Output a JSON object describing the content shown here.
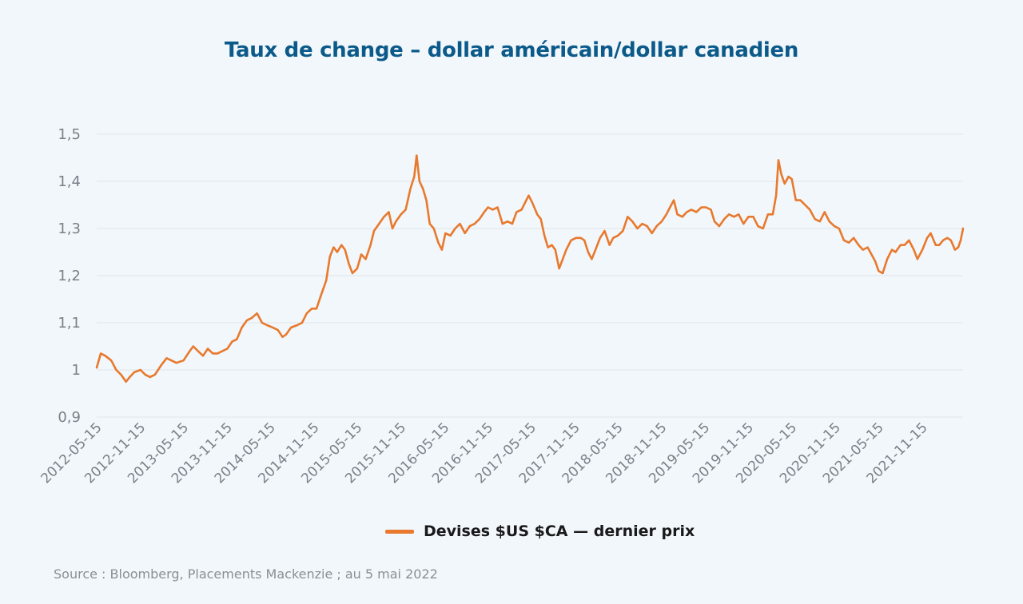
{
  "title": "Taux de change – dollar américain/dollar canadien",
  "source": "Source : Bloomberg, Placements Mackenzie ; au 5 mai 2022",
  "colors": {
    "line": "#e8792d",
    "title": "#0b5a8a",
    "grid": "#dfe5ea",
    "background": "#f1f7fb"
  },
  "chart_data": {
    "type": "line",
    "title": "Taux de change – dollar américain/dollar canadien",
    "xlabel": "",
    "ylabel": "",
    "ylim": [
      0.9,
      1.5
    ],
    "yticks": [
      0.9,
      1.0,
      1.1,
      1.2,
      1.3,
      1.4,
      1.5
    ],
    "ytick_labels": [
      "0,9",
      "1",
      "1,1",
      "1,2",
      "1,3",
      "1,4",
      "1,5"
    ],
    "xlim": [
      "2012-05-15",
      "2022-05-05"
    ],
    "xtick_labels": [
      "2012-05-15",
      "2012-11-15",
      "2013-05-15",
      "2013-11-15",
      "2014-05-15",
      "2014-11-15",
      "2015-05-15",
      "2015-11-15",
      "2016-05-15",
      "2016-11-15",
      "2017-05-15",
      "2017-11-15",
      "2018-05-15",
      "2018-11-15",
      "2019-05-15",
      "2019-11-15",
      "2020-05-15",
      "2020-11-15",
      "2021-05-15",
      "2021-11-15"
    ],
    "grid": true,
    "legend_position": "bottom",
    "series": [
      {
        "name": "Devises $US $CA — dernier prix",
        "color": "#e8792d",
        "points": [
          [
            "2012-05-15",
            1.005
          ],
          [
            "2012-06-01",
            1.035
          ],
          [
            "2012-06-20",
            1.03
          ],
          [
            "2012-07-15",
            1.02
          ],
          [
            "2012-08-05",
            1.0
          ],
          [
            "2012-08-25",
            0.99
          ],
          [
            "2012-09-15",
            0.975
          ],
          [
            "2012-10-01",
            0.985
          ],
          [
            "2012-10-20",
            0.995
          ],
          [
            "2012-11-15",
            1.0
          ],
          [
            "2012-12-05",
            0.99
          ],
          [
            "2012-12-25",
            0.985
          ],
          [
            "2013-01-15",
            0.99
          ],
          [
            "2013-02-10",
            1.01
          ],
          [
            "2013-03-05",
            1.025
          ],
          [
            "2013-03-25",
            1.02
          ],
          [
            "2013-04-15",
            1.015
          ],
          [
            "2013-05-15",
            1.02
          ],
          [
            "2013-06-10",
            1.04
          ],
          [
            "2013-06-25",
            1.05
          ],
          [
            "2013-07-15",
            1.04
          ],
          [
            "2013-08-05",
            1.03
          ],
          [
            "2013-08-25",
            1.045
          ],
          [
            "2013-09-15",
            1.035
          ],
          [
            "2013-10-05",
            1.035
          ],
          [
            "2013-10-25",
            1.04
          ],
          [
            "2013-11-15",
            1.045
          ],
          [
            "2013-12-05",
            1.06
          ],
          [
            "2013-12-25",
            1.065
          ],
          [
            "2014-01-15",
            1.09
          ],
          [
            "2014-02-05",
            1.105
          ],
          [
            "2014-02-25",
            1.11
          ],
          [
            "2014-03-20",
            1.12
          ],
          [
            "2014-04-10",
            1.1
          ],
          [
            "2014-05-01",
            1.095
          ],
          [
            "2014-05-25",
            1.09
          ],
          [
            "2014-06-15",
            1.085
          ],
          [
            "2014-07-05",
            1.07
          ],
          [
            "2014-07-20",
            1.075
          ],
          [
            "2014-08-10",
            1.09
          ],
          [
            "2014-09-05",
            1.095
          ],
          [
            "2014-09-25",
            1.1
          ],
          [
            "2014-10-15",
            1.12
          ],
          [
            "2014-11-05",
            1.13
          ],
          [
            "2014-11-25",
            1.13
          ],
          [
            "2014-12-15",
            1.16
          ],
          [
            "2015-01-05",
            1.19
          ],
          [
            "2015-01-20",
            1.24
          ],
          [
            "2015-02-05",
            1.26
          ],
          [
            "2015-02-20",
            1.25
          ],
          [
            "2015-03-10",
            1.265
          ],
          [
            "2015-03-25",
            1.255
          ],
          [
            "2015-04-10",
            1.225
          ],
          [
            "2015-04-25",
            1.205
          ],
          [
            "2015-05-15",
            1.215
          ],
          [
            "2015-06-01",
            1.245
          ],
          [
            "2015-06-20",
            1.235
          ],
          [
            "2015-07-10",
            1.265
          ],
          [
            "2015-07-25",
            1.295
          ],
          [
            "2015-08-15",
            1.31
          ],
          [
            "2015-09-05",
            1.325
          ],
          [
            "2015-09-25",
            1.335
          ],
          [
            "2015-10-10",
            1.3
          ],
          [
            "2015-10-25",
            1.315
          ],
          [
            "2015-11-15",
            1.33
          ],
          [
            "2015-12-05",
            1.34
          ],
          [
            "2015-12-25",
            1.385
          ],
          [
            "2016-01-10",
            1.41
          ],
          [
            "2016-01-20",
            1.455
          ],
          [
            "2016-02-01",
            1.4
          ],
          [
            "2016-02-15",
            1.385
          ],
          [
            "2016-03-01",
            1.36
          ],
          [
            "2016-03-15",
            1.31
          ],
          [
            "2016-04-01",
            1.3
          ],
          [
            "2016-04-20",
            1.27
          ],
          [
            "2016-05-05",
            1.255
          ],
          [
            "2016-05-20",
            1.29
          ],
          [
            "2016-06-10",
            1.285
          ],
          [
            "2016-06-30",
            1.3
          ],
          [
            "2016-07-20",
            1.31
          ],
          [
            "2016-08-10",
            1.29
          ],
          [
            "2016-08-30",
            1.305
          ],
          [
            "2016-09-20",
            1.31
          ],
          [
            "2016-10-10",
            1.32
          ],
          [
            "2016-10-30",
            1.335
          ],
          [
            "2016-11-15",
            1.345
          ],
          [
            "2016-12-05",
            1.34
          ],
          [
            "2016-12-25",
            1.345
          ],
          [
            "2017-01-15",
            1.31
          ],
          [
            "2017-02-05",
            1.315
          ],
          [
            "2017-02-25",
            1.31
          ],
          [
            "2017-03-15",
            1.335
          ],
          [
            "2017-04-05",
            1.34
          ],
          [
            "2017-04-25",
            1.36
          ],
          [
            "2017-05-05",
            1.37
          ],
          [
            "2017-05-20",
            1.355
          ],
          [
            "2017-06-10",
            1.33
          ],
          [
            "2017-06-25",
            1.32
          ],
          [
            "2017-07-10",
            1.285
          ],
          [
            "2017-07-25",
            1.26
          ],
          [
            "2017-08-10",
            1.265
          ],
          [
            "2017-08-25",
            1.255
          ],
          [
            "2017-09-10",
            1.215
          ],
          [
            "2017-09-25",
            1.235
          ],
          [
            "2017-10-10",
            1.255
          ],
          [
            "2017-10-30",
            1.275
          ],
          [
            "2017-11-20",
            1.28
          ],
          [
            "2017-12-10",
            1.28
          ],
          [
            "2017-12-25",
            1.275
          ],
          [
            "2018-01-10",
            1.25
          ],
          [
            "2018-01-25",
            1.235
          ],
          [
            "2018-02-10",
            1.255
          ],
          [
            "2018-03-01",
            1.28
          ],
          [
            "2018-03-20",
            1.295
          ],
          [
            "2018-04-10",
            1.265
          ],
          [
            "2018-04-25",
            1.28
          ],
          [
            "2018-05-15",
            1.285
          ],
          [
            "2018-06-05",
            1.295
          ],
          [
            "2018-06-25",
            1.325
          ],
          [
            "2018-07-15",
            1.315
          ],
          [
            "2018-08-05",
            1.3
          ],
          [
            "2018-08-25",
            1.31
          ],
          [
            "2018-09-15",
            1.305
          ],
          [
            "2018-10-05",
            1.29
          ],
          [
            "2018-10-25",
            1.305
          ],
          [
            "2018-11-15",
            1.315
          ],
          [
            "2018-12-05",
            1.33
          ],
          [
            "2018-12-20",
            1.345
          ],
          [
            "2019-01-05",
            1.36
          ],
          [
            "2019-01-20",
            1.33
          ],
          [
            "2019-02-10",
            1.325
          ],
          [
            "2019-03-01",
            1.335
          ],
          [
            "2019-03-20",
            1.34
          ],
          [
            "2019-04-10",
            1.335
          ],
          [
            "2019-05-01",
            1.345
          ],
          [
            "2019-05-20",
            1.345
          ],
          [
            "2019-06-10",
            1.34
          ],
          [
            "2019-06-25",
            1.315
          ],
          [
            "2019-07-15",
            1.305
          ],
          [
            "2019-08-05",
            1.32
          ],
          [
            "2019-08-25",
            1.33
          ],
          [
            "2019-09-15",
            1.325
          ],
          [
            "2019-10-05",
            1.33
          ],
          [
            "2019-10-25",
            1.31
          ],
          [
            "2019-11-15",
            1.325
          ],
          [
            "2019-12-05",
            1.325
          ],
          [
            "2019-12-25",
            1.305
          ],
          [
            "2020-01-15",
            1.3
          ],
          [
            "2020-02-05",
            1.33
          ],
          [
            "2020-02-25",
            1.33
          ],
          [
            "2020-03-10",
            1.37
          ],
          [
            "2020-03-20",
            1.445
          ],
          [
            "2020-04-01",
            1.415
          ],
          [
            "2020-04-15",
            1.395
          ],
          [
            "2020-05-01",
            1.41
          ],
          [
            "2020-05-15",
            1.405
          ],
          [
            "2020-06-01",
            1.36
          ],
          [
            "2020-06-20",
            1.36
          ],
          [
            "2020-07-10",
            1.35
          ],
          [
            "2020-07-30",
            1.34
          ],
          [
            "2020-08-20",
            1.32
          ],
          [
            "2020-09-10",
            1.315
          ],
          [
            "2020-09-30",
            1.335
          ],
          [
            "2020-10-20",
            1.315
          ],
          [
            "2020-11-10",
            1.305
          ],
          [
            "2020-11-30",
            1.3
          ],
          [
            "2020-12-20",
            1.275
          ],
          [
            "2021-01-10",
            1.27
          ],
          [
            "2021-01-30",
            1.28
          ],
          [
            "2021-02-20",
            1.265
          ],
          [
            "2021-03-10",
            1.255
          ],
          [
            "2021-03-30",
            1.26
          ],
          [
            "2021-04-15",
            1.245
          ],
          [
            "2021-05-01",
            1.23
          ],
          [
            "2021-05-15",
            1.21
          ],
          [
            "2021-06-01",
            1.205
          ],
          [
            "2021-06-20",
            1.235
          ],
          [
            "2021-07-10",
            1.255
          ],
          [
            "2021-07-25",
            1.25
          ],
          [
            "2021-08-15",
            1.265
          ],
          [
            "2021-09-01",
            1.265
          ],
          [
            "2021-09-20",
            1.275
          ],
          [
            "2021-10-10",
            1.255
          ],
          [
            "2021-10-25",
            1.235
          ],
          [
            "2021-11-15",
            1.255
          ],
          [
            "2021-12-05",
            1.28
          ],
          [
            "2021-12-20",
            1.29
          ],
          [
            "2022-01-10",
            1.265
          ],
          [
            "2022-01-25",
            1.265
          ],
          [
            "2022-02-10",
            1.275
          ],
          [
            "2022-02-28",
            1.28
          ],
          [
            "2022-03-15",
            1.275
          ],
          [
            "2022-04-01",
            1.255
          ],
          [
            "2022-04-15",
            1.26
          ],
          [
            "2022-04-25",
            1.275
          ],
          [
            "2022-05-05",
            1.3
          ]
        ]
      }
    ]
  }
}
